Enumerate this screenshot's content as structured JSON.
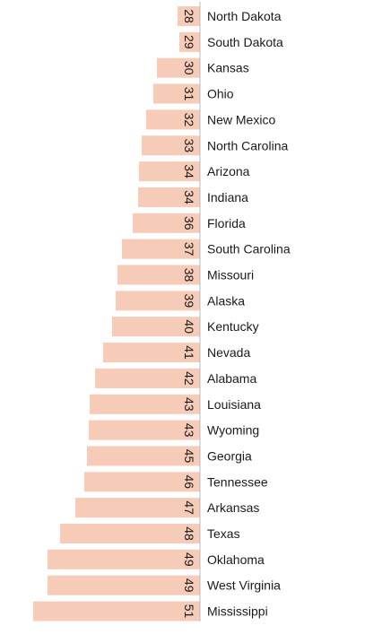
{
  "chart_data": {
    "type": "bar",
    "orientation": "horizontal",
    "categories": [
      "North Dakota",
      "South Dakota",
      "Kansas",
      "Ohio",
      "New Mexico",
      "North Carolina",
      "Arizona",
      "Indiana",
      "Florida",
      "South Carolina",
      "Missouri",
      "Alaska",
      "Kentucky",
      "Nevada",
      "Alabama",
      "Louisiana",
      "Wyoming",
      "Georgia",
      "Tennessee",
      "Arkansas",
      "Texas",
      "Oklahoma",
      "West Virginia",
      "Mississippi"
    ],
    "values": [
      2.5,
      2.3,
      4.8,
      5.2,
      6.0,
      6.5,
      6.8,
      6.9,
      7.5,
      8.7,
      9.2,
      9.4,
      9.8,
      10.8,
      11.7,
      12.3,
      12.4,
      12.6,
      12.9,
      13.9,
      15.6,
      17.0,
      17.0,
      18.6
    ],
    "value_labels": [
      "28",
      "29",
      "30",
      "31",
      "32",
      "33",
      "34",
      "34",
      "36",
      "37",
      "38",
      "39",
      "40",
      "41",
      "42",
      "43",
      "43",
      "45",
      "46",
      "47",
      "48",
      "49",
      "49",
      "51"
    ],
    "bar_color": "#f6cbb8",
    "axis_color": "#b8b8b8",
    "label_color": "#1a1a1a",
    "value_label_rotation": 90
  }
}
